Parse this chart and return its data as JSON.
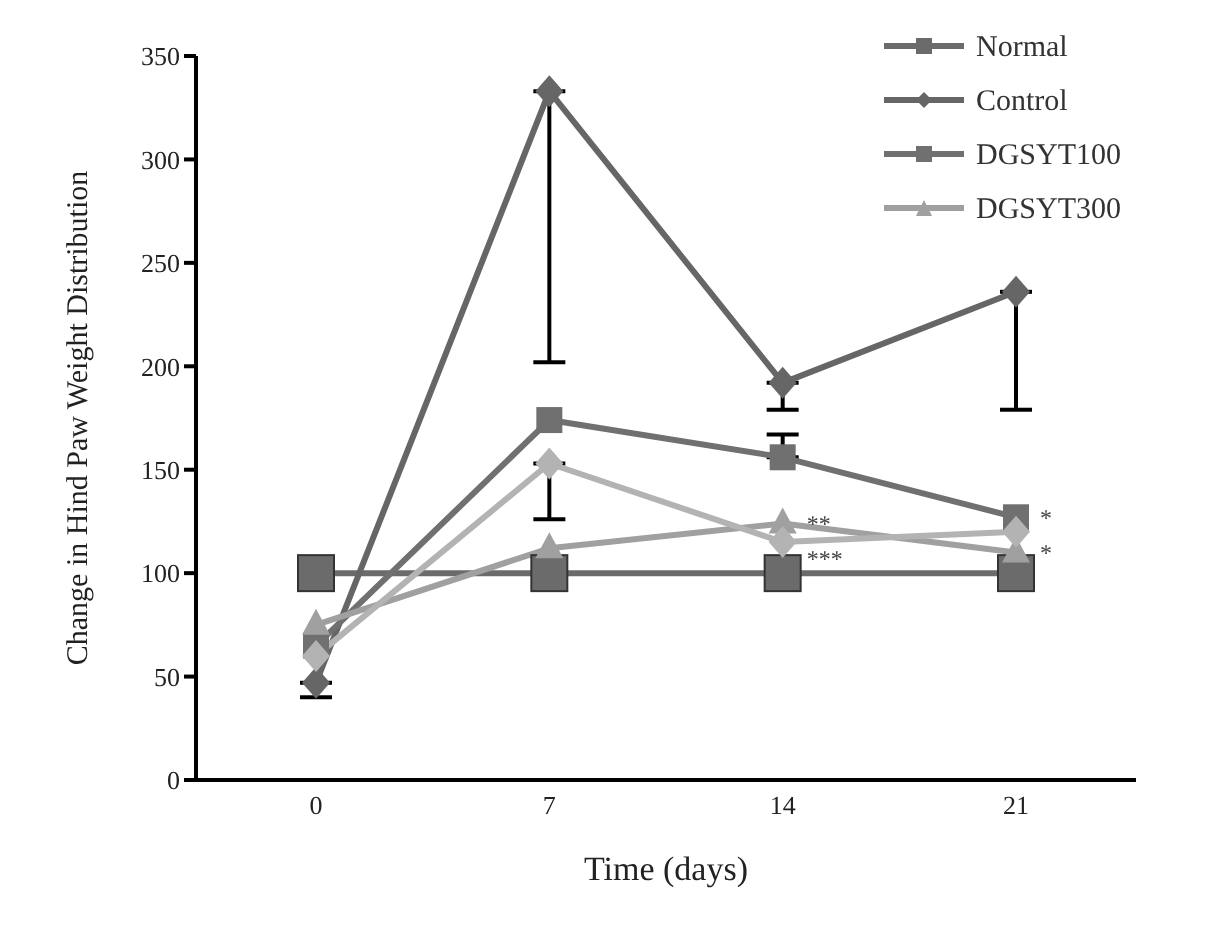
{
  "chart_data": {
    "type": "line",
    "xlabel": "Time (days)",
    "ylabel": "Change in Hind Paw Weight Distribution",
    "categories": [
      "0",
      "7",
      "14",
      "21"
    ],
    "ylim": [
      0,
      350
    ],
    "yticks": [
      0,
      50,
      100,
      150,
      200,
      250,
      300,
      350
    ],
    "grid": false,
    "legend": "top right",
    "line_style": "solid",
    "series": [
      {
        "name": "Normal",
        "color": "#6b6b6b",
        "marker": "square",
        "values": [
          100,
          100,
          100,
          100
        ]
      },
      {
        "name": "Control",
        "color": "#666666",
        "marker": "diamond",
        "values": [
          47,
          333,
          192,
          236
        ],
        "errors": [
          [
            40,
            47
          ],
          [
            202,
            333
          ],
          [
            179,
            192
          ],
          [
            179,
            236
          ]
        ]
      },
      {
        "name": "DGSYT100",
        "color": "#707070",
        "marker": "square",
        "values": [
          65,
          174,
          156,
          127
        ],
        "errors": [
          null,
          null,
          [
            156,
            167
          ],
          null
        ]
      },
      {
        "name": "DGSYT300",
        "color": "#a0a0a0",
        "marker": "triangle",
        "values": [
          75,
          112,
          124,
          110
        ]
      },
      {
        "color": "#b3b3b3",
        "marker": "diamond",
        "values": [
          60,
          153,
          115,
          120
        ],
        "errors": [
          null,
          [
            126,
            153
          ],
          null,
          null
        ]
      }
    ],
    "annotations": [
      {
        "text": "**",
        "x": "14",
        "y": 124
      },
      {
        "text": "***",
        "x": "14",
        "y": 107
      },
      {
        "text": "*",
        "x": "21",
        "y": 127
      },
      {
        "text": "*",
        "x": "21",
        "y": 110
      }
    ]
  }
}
